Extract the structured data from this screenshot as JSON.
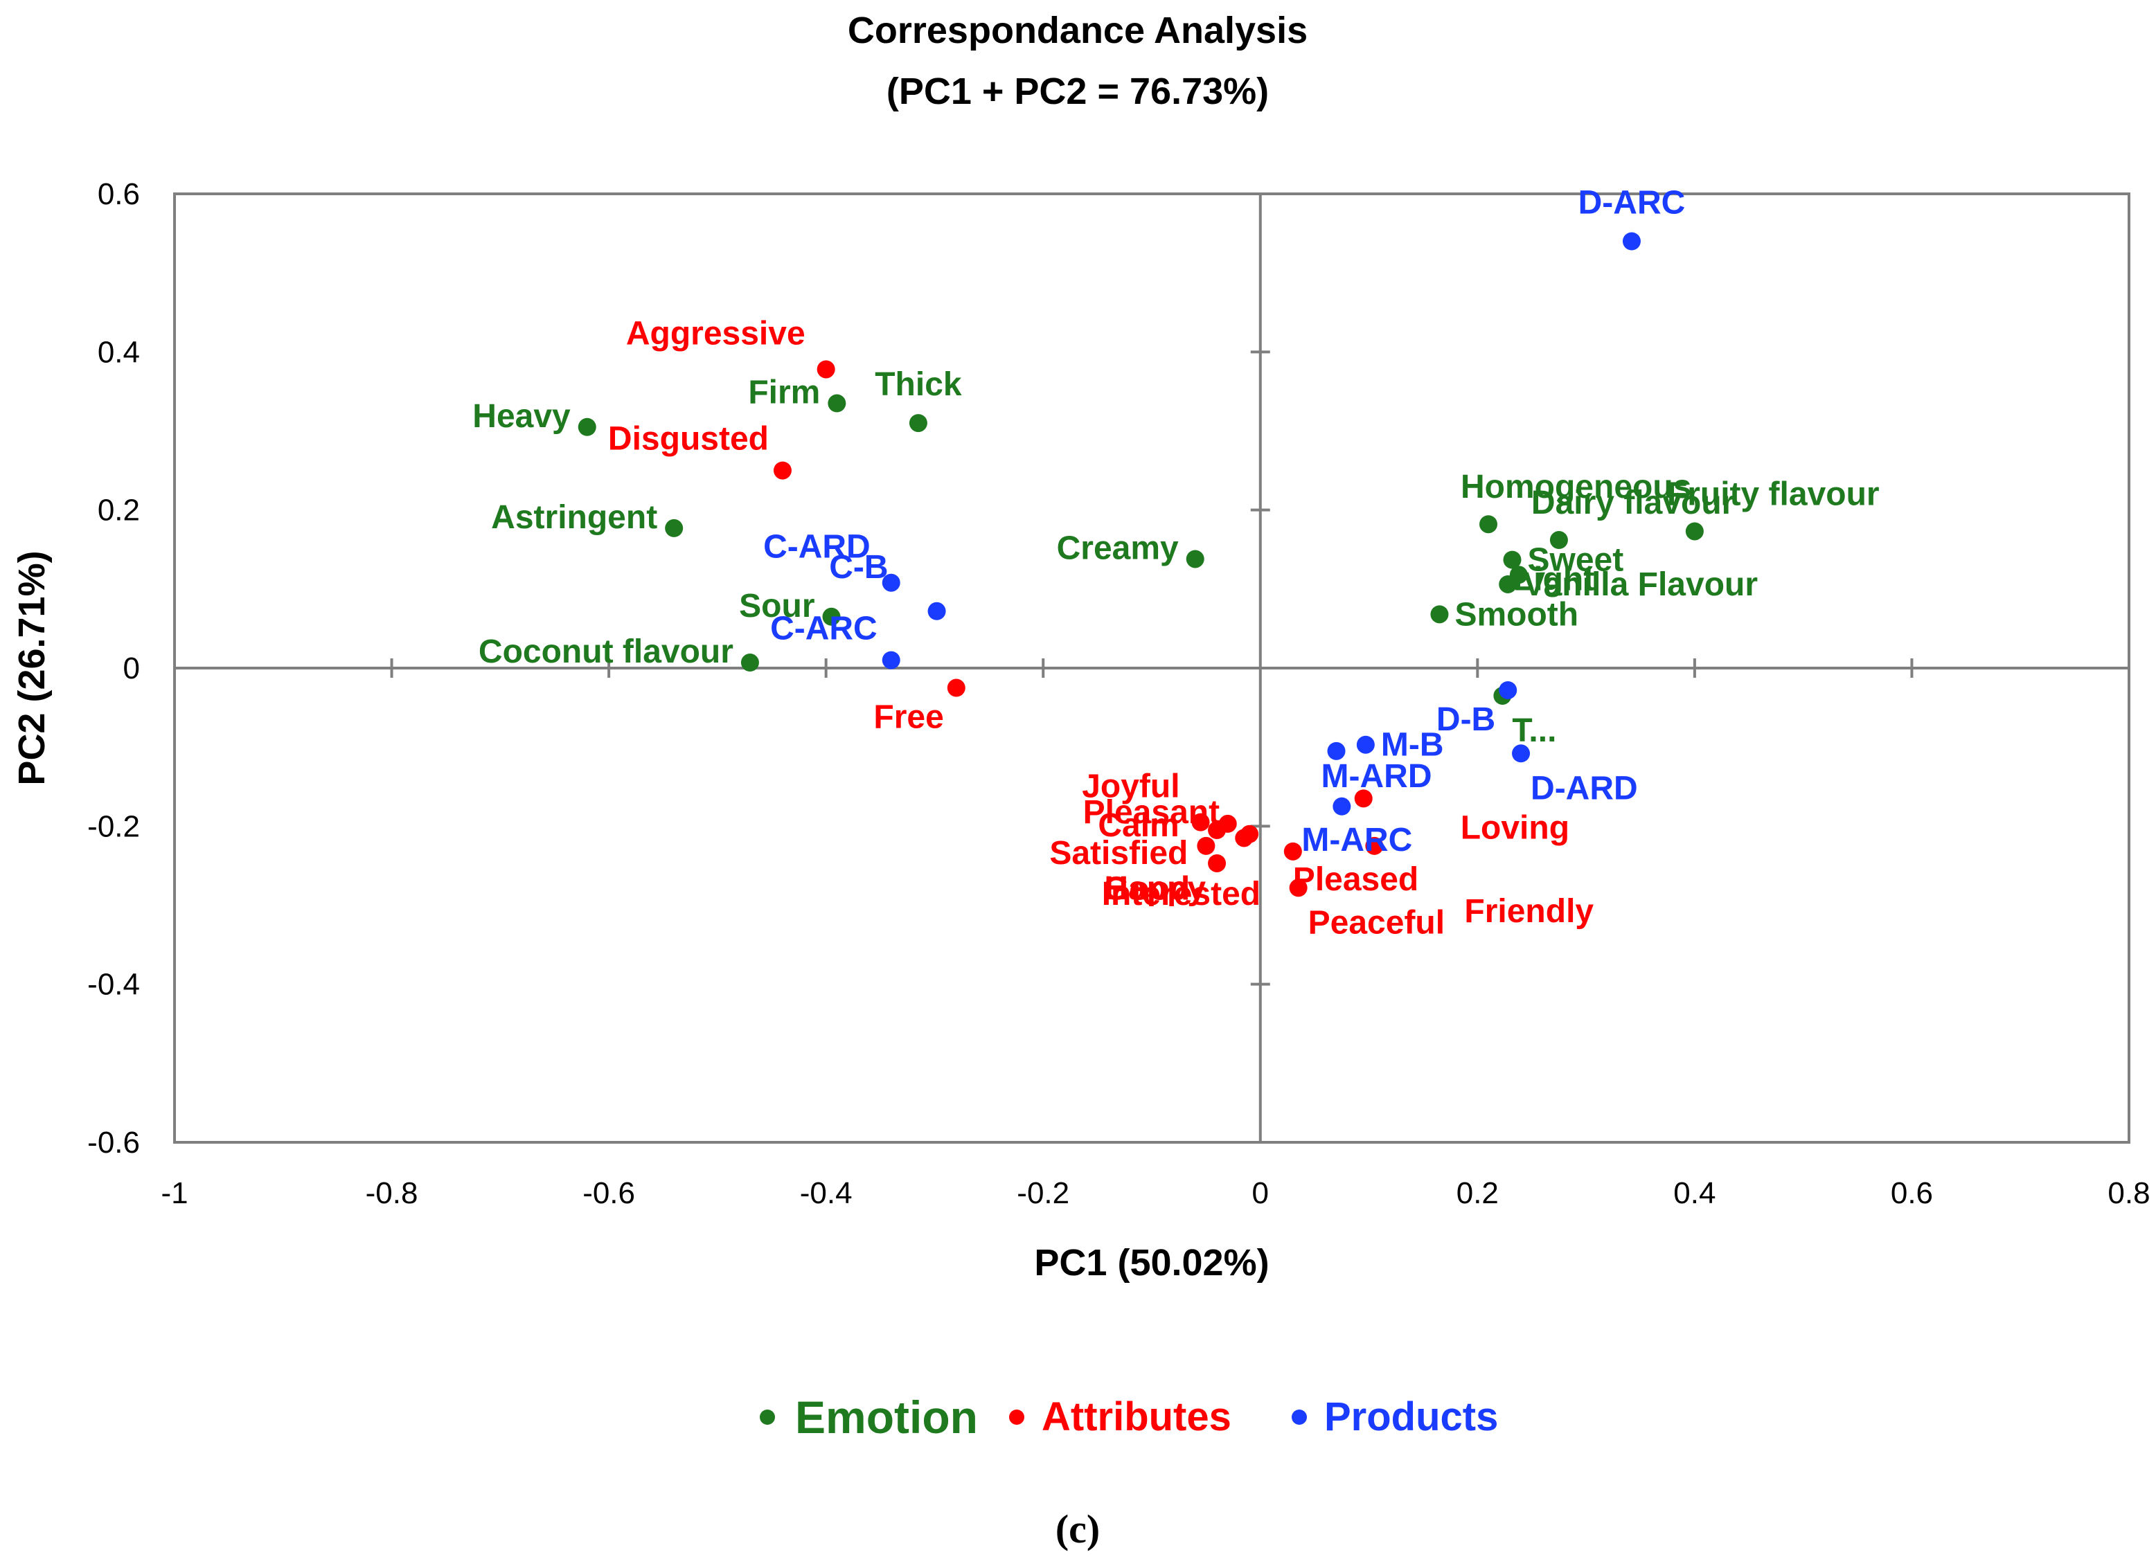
{
  "colors": {
    "emotion": "#1f7a1f",
    "attributes": "#ff0000",
    "products": "#1a3cff",
    "axis": "#7f7f7f"
  },
  "chart_data": {
    "type": "scatter",
    "title": "Correspondance Analysis",
    "subtitle": "(PC1 + PC2 = 76.73%)",
    "xlabel": "PC1 (50.02%)",
    "ylabel": "PC2 (26.71%)",
    "xlim": [
      -1,
      0.8
    ],
    "ylim": [
      -0.6,
      0.6
    ],
    "xticks": [
      -1,
      -0.8,
      -0.6,
      -0.4,
      -0.2,
      0,
      0.2,
      0.4,
      0.6,
      0.8
    ],
    "yticks": [
      0.6,
      0.4,
      0.2,
      0,
      -0.2,
      -0.4,
      -0.6
    ],
    "xtick_labels": [
      "-1",
      "-0.8",
      "-0.6",
      "-0.4",
      "-0.2",
      "0",
      "0.2",
      "0.4",
      "0.6",
      "0.8"
    ],
    "ytick_labels": [
      "0.6",
      "0.4",
      "0.2",
      "0",
      "-0.2",
      "-0.4",
      "-0.6"
    ],
    "grid": false,
    "legend_position": "bottom",
    "legend": [
      {
        "name": "Emotion",
        "group": "emotion"
      },
      {
        "name": "Attributes",
        "group": "attributes"
      },
      {
        "name": "Products",
        "group": "products"
      }
    ],
    "series": [
      {
        "name": "Emotion",
        "group": "emotion",
        "points": [
          {
            "label": "Heavy",
            "x": -0.62,
            "y": 0.305,
            "pos": "left"
          },
          {
            "label": "Firm",
            "x": -0.39,
            "y": 0.335,
            "pos": "left"
          },
          {
            "label": "Thick",
            "x": -0.315,
            "y": 0.31,
            "pos": "above"
          },
          {
            "label": "Astringent",
            "x": -0.54,
            "y": 0.177,
            "pos": "left"
          },
          {
            "label": "Sour",
            "x": -0.395,
            "y": 0.065,
            "pos": "left"
          },
          {
            "label": "Coconut flavour",
            "x": -0.47,
            "y": 0.007,
            "pos": "left"
          },
          {
            "label": "Creamy",
            "x": -0.06,
            "y": 0.138,
            "pos": "left"
          },
          {
            "label": "Homogeneous",
            "x": 0.21,
            "y": 0.182,
            "pos": "aboveright"
          },
          {
            "label": "Dairy flavour",
            "x": 0.275,
            "y": 0.162,
            "pos": "aboveright"
          },
          {
            "label": "Fruity flavour",
            "x": 0.4,
            "y": 0.173,
            "pos": "aboveright"
          },
          {
            "label": "Sweet",
            "x": 0.232,
            "y": 0.137,
            "pos": "right"
          },
          {
            "label": "Light",
            "x": 0.238,
            "y": 0.118,
            "pos": "farright"
          },
          {
            "label": "Vanilla Flavour",
            "x": 0.228,
            "y": 0.106,
            "pos": "right"
          },
          {
            "label": "Smooth",
            "x": 0.165,
            "y": 0.068,
            "pos": "right"
          },
          {
            "label": "T...",
            "x": 0.223,
            "y": -0.035,
            "pos": "belowright"
          }
        ]
      },
      {
        "name": "Attributes",
        "group": "attributes",
        "points": [
          {
            "label": "Aggressive",
            "x": -0.4,
            "y": 0.378,
            "pos": "upleft"
          },
          {
            "label": "Disgusted",
            "x": -0.44,
            "y": 0.25,
            "pos": "aboveleft"
          },
          {
            "label": "Free",
            "x": -0.28,
            "y": -0.025,
            "pos": "belowleft"
          },
          {
            "label": "Joyful",
            "x": -0.055,
            "y": -0.195,
            "pos": "upleft"
          },
          {
            "label": "Pleasant",
            "x": -0.04,
            "y": -0.205,
            "pos": "pleasant"
          },
          {
            "label": "Calm",
            "x": -0.03,
            "y": -0.197,
            "pos": "calm"
          },
          {
            "label": "Satisfied",
            "x": -0.05,
            "y": -0.225,
            "pos": "satisfied"
          },
          {
            "label": "Happy",
            "x": -0.04,
            "y": -0.247,
            "pos": "happy"
          },
          {
            "label": "Good",
            "x": -0.015,
            "y": -0.215,
            "pos": "good"
          },
          {
            "label": "Interested",
            "x": -0.01,
            "y": -0.21,
            "pos": "interested"
          },
          {
            "label": "Pleased",
            "x": 0.03,
            "y": -0.232,
            "pos": "below"
          },
          {
            "label": "Peaceful",
            "x": 0.035,
            "y": -0.278,
            "pos": "belowright"
          },
          {
            "label": "Loving",
            "x": 0.095,
            "y": -0.165,
            "pos": "loving"
          },
          {
            "label": "Friendly",
            "x": 0.105,
            "y": -0.225,
            "pos": "friendly"
          }
        ]
      },
      {
        "name": "Products",
        "group": "products",
        "points": [
          {
            "label": "D-ARC",
            "x": 0.342,
            "y": 0.54,
            "pos": "above"
          },
          {
            "label": "C-ARD",
            "x": -0.34,
            "y": 0.108,
            "pos": "upleft"
          },
          {
            "label": "C-B",
            "x": -0.298,
            "y": 0.072,
            "pos": "cb"
          },
          {
            "label": "C-ARC",
            "x": -0.34,
            "y": 0.01,
            "pos": "aboveleft"
          },
          {
            "label": "D-B",
            "x": 0.228,
            "y": -0.028,
            "pos": "belowleft"
          },
          {
            "label": "D-ARD",
            "x": 0.24,
            "y": -0.108,
            "pos": "belowright"
          },
          {
            "label": "M-B",
            "x": 0.097,
            "y": -0.097,
            "pos": "right"
          },
          {
            "label": "M-ARD",
            "x": 0.07,
            "y": -0.105,
            "pos": "mard"
          },
          {
            "label": "M-ARC",
            "x": 0.075,
            "y": -0.175,
            "pos": "marc"
          }
        ]
      }
    ]
  },
  "caption": "(c)"
}
